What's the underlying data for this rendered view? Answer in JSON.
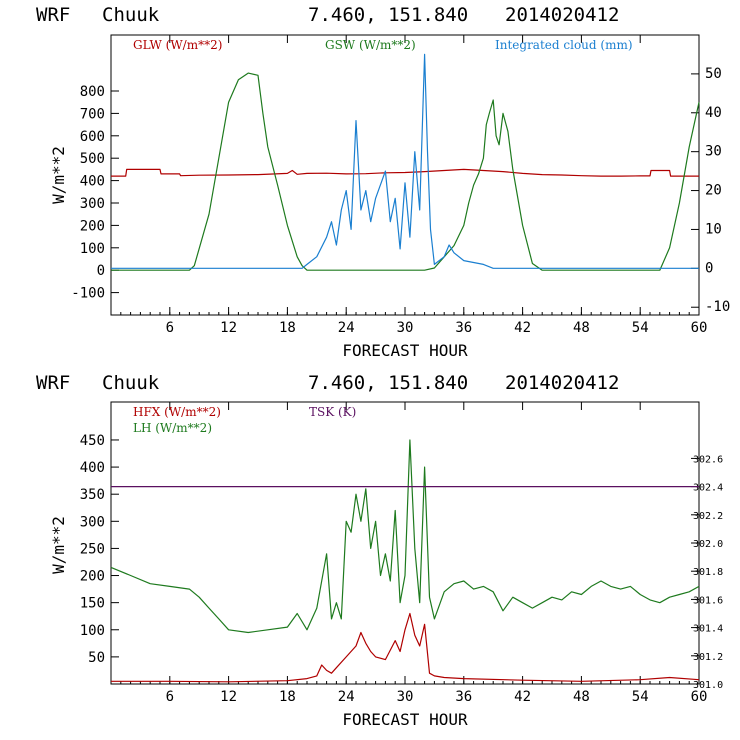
{
  "chart_data": [
    {
      "type": "line",
      "header": {
        "model": "WRF",
        "location": "Chuuk",
        "coords": "7.460, 151.840",
        "date": "2014020412"
      },
      "xlabel": "FORECAST HOUR",
      "ylabel": "W/m**2",
      "xlim": [
        0,
        60
      ],
      "ylim": [
        -200,
        1050
      ],
      "y2lim": [
        -12,
        60
      ],
      "xticks": [
        "6",
        "12",
        "18",
        "24",
        "30",
        "36",
        "42",
        "48",
        "54",
        "60"
      ],
      "yticks": [
        "-100",
        "0",
        "100",
        "200",
        "300",
        "400",
        "500",
        "600",
        "700",
        "800"
      ],
      "y2ticks": [
        "-10",
        "0",
        "10",
        "20",
        "30",
        "40",
        "50"
      ],
      "series": [
        {
          "name": "GLW (W/m**2)",
          "color": "#b00000",
          "axis": "left",
          "x": [
            0,
            1.5,
            1.6,
            5.0,
            5.1,
            7.0,
            7.1,
            9,
            12,
            15,
            18,
            18.5,
            19,
            20,
            22,
            24,
            26,
            28,
            30,
            32,
            34,
            36,
            38,
            40,
            42,
            44,
            46,
            48,
            50,
            52,
            54,
            55,
            55.1,
            57,
            57.1,
            60
          ],
          "y": [
            420,
            420,
            450,
            450,
            430,
            430,
            422,
            424,
            425,
            427,
            432,
            445,
            428,
            432,
            433,
            430,
            431,
            435,
            436,
            440,
            445,
            450,
            445,
            440,
            432,
            427,
            425,
            422,
            420,
            420,
            421,
            421,
            445,
            445,
            420,
            420
          ]
        },
        {
          "name": "GSW (W/m**2)",
          "color": "#1e7a1e",
          "axis": "left",
          "x": [
            0,
            8,
            8.5,
            10,
            11,
            12,
            13,
            14,
            15,
            15.5,
            16,
            17,
            18,
            19,
            19.5,
            20,
            32,
            33,
            34,
            35,
            36,
            36.5,
            37,
            37.5,
            38,
            38.3,
            38.6,
            39,
            39.3,
            39.6,
            40,
            40.5,
            41,
            42,
            43,
            44,
            55,
            56,
            57,
            58,
            59,
            60
          ],
          "y": [
            0,
            0,
            20,
            250,
            500,
            750,
            850,
            880,
            870,
            700,
            550,
            380,
            200,
            60,
            20,
            0,
            0,
            10,
            60,
            110,
            200,
            300,
            380,
            430,
            500,
            650,
            700,
            760,
            600,
            560,
            700,
            620,
            450,
            200,
            30,
            0,
            0,
            0,
            100,
            300,
            550,
            750
          ]
        },
        {
          "name": "Integrated cloud (mm)",
          "color": "#1a7fd0",
          "axis": "right",
          "x": [
            0,
            19.5,
            20,
            21,
            22,
            22.5,
            23,
            23.5,
            24,
            24.5,
            25,
            25.5,
            26,
            26.5,
            27,
            28,
            28.5,
            29,
            29.5,
            30,
            30.5,
            31,
            31.5,
            32,
            32.3,
            32.6,
            33,
            34,
            34.5,
            35,
            36,
            38,
            39,
            60
          ],
          "y": [
            0,
            0,
            1,
            3,
            8,
            12,
            6,
            15,
            20,
            10,
            38,
            15,
            20,
            12,
            18,
            25,
            12,
            18,
            5,
            22,
            8,
            30,
            15,
            55,
            30,
            10,
            1,
            3,
            6,
            4,
            2,
            1,
            0,
            0
          ]
        }
      ]
    },
    {
      "type": "line",
      "header": {
        "model": "WRF",
        "location": "Chuuk",
        "coords": "7.460, 151.840",
        "date": "2014020412"
      },
      "xlabel": "FORECAST HOUR",
      "ylabel": "W/m**2",
      "xlim": [
        0,
        60
      ],
      "ylim": [
        0,
        520
      ],
      "y2lim": [
        301.0,
        303.0
      ],
      "xticks": [
        "6",
        "12",
        "18",
        "24",
        "30",
        "36",
        "42",
        "48",
        "54",
        "60"
      ],
      "yticks": [
        "50",
        "100",
        "150",
        "200",
        "250",
        "300",
        "350",
        "400",
        "450"
      ],
      "y2ticks": [
        "301.0",
        "301.2",
        "301.4",
        "301.6",
        "301.8",
        "302.0",
        "302.2",
        "302.4",
        "302.6"
      ],
      "series": [
        {
          "name": "HFX (W/m**2)",
          "color": "#b00000",
          "axis": "left",
          "x": [
            0,
            6,
            12,
            18,
            20,
            21,
            21.5,
            22,
            22.5,
            23,
            24,
            25,
            25.5,
            26,
            26.5,
            27,
            28,
            29,
            29.5,
            30,
            30.5,
            31,
            31.5,
            32,
            32.5,
            33,
            34,
            36,
            42,
            48,
            54,
            57,
            60
          ],
          "y": [
            5,
            5,
            4,
            6,
            10,
            15,
            35,
            25,
            20,
            30,
            50,
            70,
            95,
            75,
            60,
            50,
            45,
            80,
            60,
            100,
            130,
            90,
            70,
            110,
            20,
            15,
            12,
            10,
            7,
            5,
            8,
            12,
            8
          ]
        },
        {
          "name": "LH (W/m**2)",
          "color": "#1e7a1e",
          "axis": "left",
          "x": [
            0,
            2,
            4,
            6,
            8,
            9,
            10,
            11,
            12,
            14,
            16,
            18,
            19,
            20,
            21,
            22,
            22.5,
            23,
            23.5,
            24,
            24.5,
            25,
            25.5,
            26,
            26.5,
            27,
            27.5,
            28,
            28.5,
            29,
            29.5,
            30,
            30.5,
            31,
            31.5,
            32,
            32.5,
            33,
            34,
            35,
            36,
            37,
            38,
            39,
            40,
            41,
            42,
            43,
            44,
            45,
            46,
            47,
            48,
            49,
            50,
            51,
            52,
            53,
            54,
            55,
            56,
            57,
            58,
            59,
            60
          ],
          "y": [
            215,
            200,
            185,
            180,
            175,
            160,
            140,
            120,
            100,
            95,
            100,
            105,
            130,
            100,
            140,
            240,
            120,
            150,
            120,
            300,
            280,
            350,
            300,
            360,
            250,
            300,
            200,
            240,
            190,
            320,
            150,
            200,
            450,
            250,
            150,
            400,
            160,
            120,
            170,
            185,
            190,
            175,
            180,
            170,
            135,
            160,
            150,
            140,
            150,
            160,
            155,
            170,
            165,
            180,
            190,
            180,
            175,
            180,
            165,
            155,
            150,
            160,
            165,
            170,
            180
          ]
        },
        {
          "name": "TSK (K)",
          "color": "#5a1060",
          "axis": "right",
          "x": [
            0,
            60
          ],
          "y": [
            302.4,
            302.4
          ]
        }
      ]
    }
  ]
}
